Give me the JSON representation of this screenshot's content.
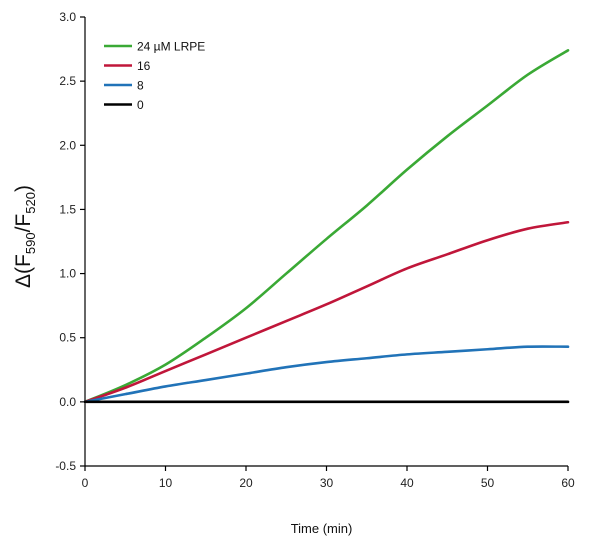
{
  "chart_data": {
    "type": "line",
    "xlabel": "Time (min)",
    "ylabel": {
      "prefix": "Δ(F",
      "sub1": "590",
      "mid": "/F",
      "sub2": "520",
      "suffix": ")"
    },
    "xlim": [
      0,
      60
    ],
    "ylim": [
      -0.5,
      3.0
    ],
    "xticks": [
      0,
      10,
      20,
      30,
      40,
      50,
      60
    ],
    "yticks": [
      -0.5,
      0.0,
      0.5,
      1.0,
      1.5,
      2.0,
      2.5,
      3.0
    ],
    "xtick_labels": [
      "0",
      "10",
      "20",
      "30",
      "40",
      "50",
      "60"
    ],
    "ytick_labels": [
      "-0.5",
      "0.0",
      "0.5",
      "1.0",
      "1.5",
      "2.0",
      "2.5",
      "3.0"
    ],
    "grid": false,
    "legend_position": "top-left",
    "series": [
      {
        "name": "24 µM LRPE",
        "color": "#3aa935",
        "x": [
          0,
          5,
          10,
          15,
          20,
          25,
          30,
          35,
          40,
          45,
          50,
          55,
          60
        ],
        "y": [
          0.0,
          0.13,
          0.29,
          0.5,
          0.73,
          1.0,
          1.27,
          1.53,
          1.81,
          2.07,
          2.31,
          2.55,
          2.74
        ]
      },
      {
        "name": "16",
        "color": "#c0163a",
        "x": [
          0,
          5,
          10,
          15,
          20,
          25,
          30,
          35,
          40,
          45,
          50,
          55,
          60
        ],
        "y": [
          0.0,
          0.11,
          0.24,
          0.37,
          0.5,
          0.63,
          0.76,
          0.9,
          1.04,
          1.15,
          1.26,
          1.35,
          1.4
        ]
      },
      {
        "name": "8",
        "color": "#2173b8",
        "x": [
          0,
          5,
          10,
          15,
          20,
          25,
          30,
          35,
          40,
          45,
          50,
          55,
          60
        ],
        "y": [
          0.0,
          0.06,
          0.12,
          0.17,
          0.22,
          0.27,
          0.31,
          0.34,
          0.37,
          0.39,
          0.41,
          0.43,
          0.43
        ]
      },
      {
        "name": "0",
        "color": "#000000",
        "x": [
          0,
          60
        ],
        "y": [
          0.0,
          0.0
        ]
      }
    ]
  }
}
